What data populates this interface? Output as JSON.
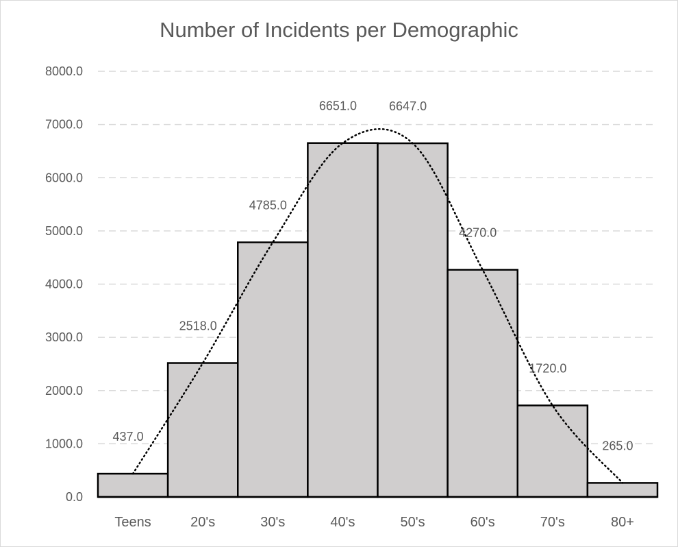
{
  "chart_data": {
    "type": "bar",
    "title": "Number of Incidents per Demographic",
    "categories": [
      "Teens",
      "20's",
      "30's",
      "40's",
      "50's",
      "60's",
      "70's",
      "80+"
    ],
    "values": [
      437.0,
      2518.0,
      4785.0,
      6651.0,
      6647.0,
      4270.0,
      1720.0,
      265.0
    ],
    "data_labels": [
      "437.0",
      "2518.0",
      "4785.0",
      "6651.0",
      "6647.0",
      "4270.0",
      "1720.0",
      "265.0"
    ],
    "y_ticks": [
      "0.0",
      "1000.0",
      "2000.0",
      "3000.0",
      "4000.0",
      "5000.0",
      "6000.0",
      "7000.0",
      "8000.0"
    ],
    "ylim": [
      0,
      8000
    ],
    "xlabel": "",
    "ylabel": "",
    "grid": "horizontal dashed",
    "trendline": "dotted polynomial",
    "colors": {
      "bar_fill": "#d0cece",
      "bar_stroke": "#000000",
      "grid": "#d9d9d9",
      "text": "#595959",
      "title": "#595959",
      "trend": "#000000"
    }
  }
}
